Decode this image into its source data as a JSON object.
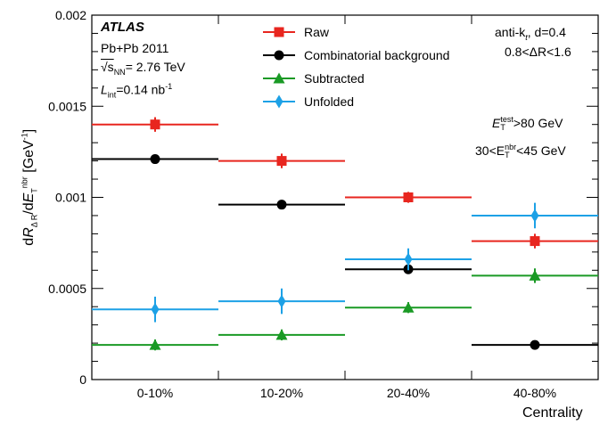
{
  "chart_data": {
    "type": "scatter",
    "categories": [
      "0-10%",
      "10-20%",
      "20-40%",
      "40-80%"
    ],
    "xlabel": "Centrality",
    "ylabel": "dR_ΔR/dE_T^nbr [GeV^-1]",
    "ylim": [
      0,
      0.002
    ],
    "yticks": [
      "0",
      "0.0005",
      "0.001",
      "0.0015",
      "0.002"
    ],
    "grid": false,
    "legend_position": "top-center",
    "series": [
      {
        "name": "Raw",
        "color": "#e8261f",
        "marker": "square",
        "values": [
          0.0014,
          0.0012,
          0.001,
          0.00076
        ],
        "errors": [
          4e-05,
          4e-05,
          3e-05,
          4e-05
        ]
      },
      {
        "name": "Combinatorial background",
        "color": "#000000",
        "marker": "circle",
        "values": [
          0.00121,
          0.00096,
          0.000605,
          0.00019
        ],
        "errors": [
          0,
          0,
          0,
          0
        ]
      },
      {
        "name": "Subtracted",
        "color": "#1a9a25",
        "marker": "triangle",
        "values": [
          0.00019,
          0.000245,
          0.000395,
          0.00057
        ],
        "errors": [
          3e-05,
          3e-05,
          3e-05,
          4e-05
        ]
      },
      {
        "name": "Unfolded",
        "color": "#1da1e6",
        "marker": "diamond",
        "values": [
          0.000385,
          0.00043,
          0.00066,
          0.0009
        ],
        "errors": [
          7e-05,
          7e-05,
          6e-05,
          7e-05
        ]
      }
    ]
  },
  "annotations": {
    "atlas": "ATLAS",
    "system": "Pb+Pb 2011",
    "energy_prefix": "√s",
    "energy_sub": "NN",
    "energy_value": "= 2.76 TeV",
    "lumi_prefix": "L",
    "lumi_sub": "int",
    "lumi_value": "=0.14 nb",
    "lumi_sup": "-1",
    "algo_prefix": "anti-k",
    "algo_sub": "t",
    "algo_suffix": ", d=0.4",
    "dr_range": "0.8<ΔR<1.6",
    "et_test_prefix": "E",
    "et_test_sup": "test",
    "et_test_sub": "T",
    "et_test_suffix": ">80 GeV",
    "et_nbr_prefix": "30<E",
    "et_nbr_sup": "nbr",
    "et_nbr_sub": "T",
    "et_nbr_suffix": "<45 GeV"
  }
}
